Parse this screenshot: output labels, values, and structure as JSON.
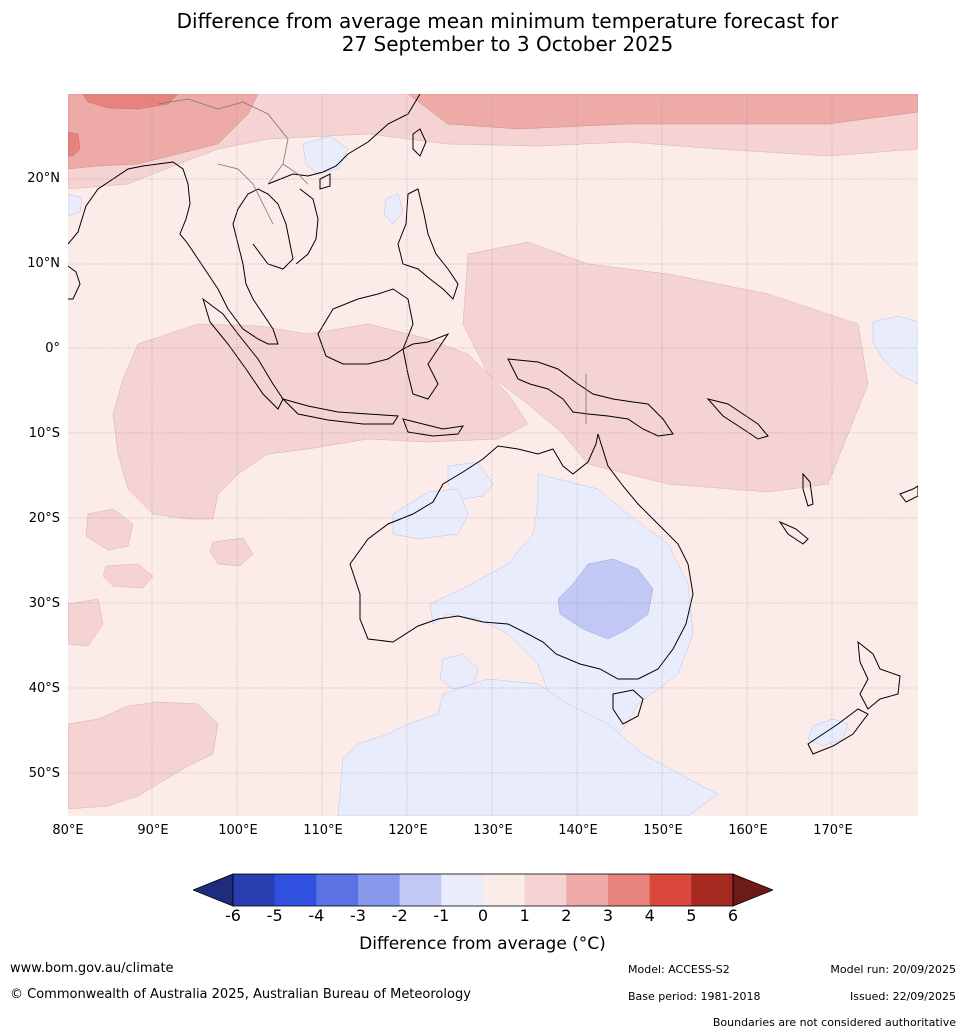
{
  "title": {
    "line1": "Difference from average mean minimum temperature forecast for",
    "line2": "27 September to 3 October 2025"
  },
  "map": {
    "lat_labels": [
      "20°N",
      "10°N",
      "0°",
      "10°S",
      "20°S",
      "30°S",
      "40°S",
      "50°S"
    ],
    "lon_labels": [
      "80°E",
      "90°E",
      "100°E",
      "110°E",
      "120°E",
      "130°E",
      "140°E",
      "150°E",
      "160°E",
      "170°E"
    ]
  },
  "legend": {
    "ticks": [
      "-6",
      "-5",
      "-4",
      "-3",
      "-2",
      "-1",
      "0",
      "1",
      "2",
      "3",
      "4",
      "5",
      "6"
    ],
    "colors": [
      "#1f2c7e",
      "#2a3eb1",
      "#3050e0",
      "#5b72e4",
      "#8797ec",
      "#c1c8f4",
      "#e9edfb",
      "#fbecea",
      "#f4d3d2",
      "#edaaa6",
      "#e6837d",
      "#d9473d",
      "#a72a21",
      "#6e1a17"
    ],
    "label": "Difference from average ($^\\circ$C)",
    "label_display": "Difference from average (°C)"
  },
  "footer": {
    "website": "www.bom.gov.au/climate",
    "copyright": "© Commonwealth of Australia 2025, Australian Bureau of Meteorology",
    "model": "Model: ACCESS-S2",
    "model_run": "Model run: 20/09/2025",
    "base_period": "Base period: 1981-2018",
    "issued": "Issued: 22/09/2025",
    "disclaimer": "Boundaries are not considered authoritative"
  }
}
